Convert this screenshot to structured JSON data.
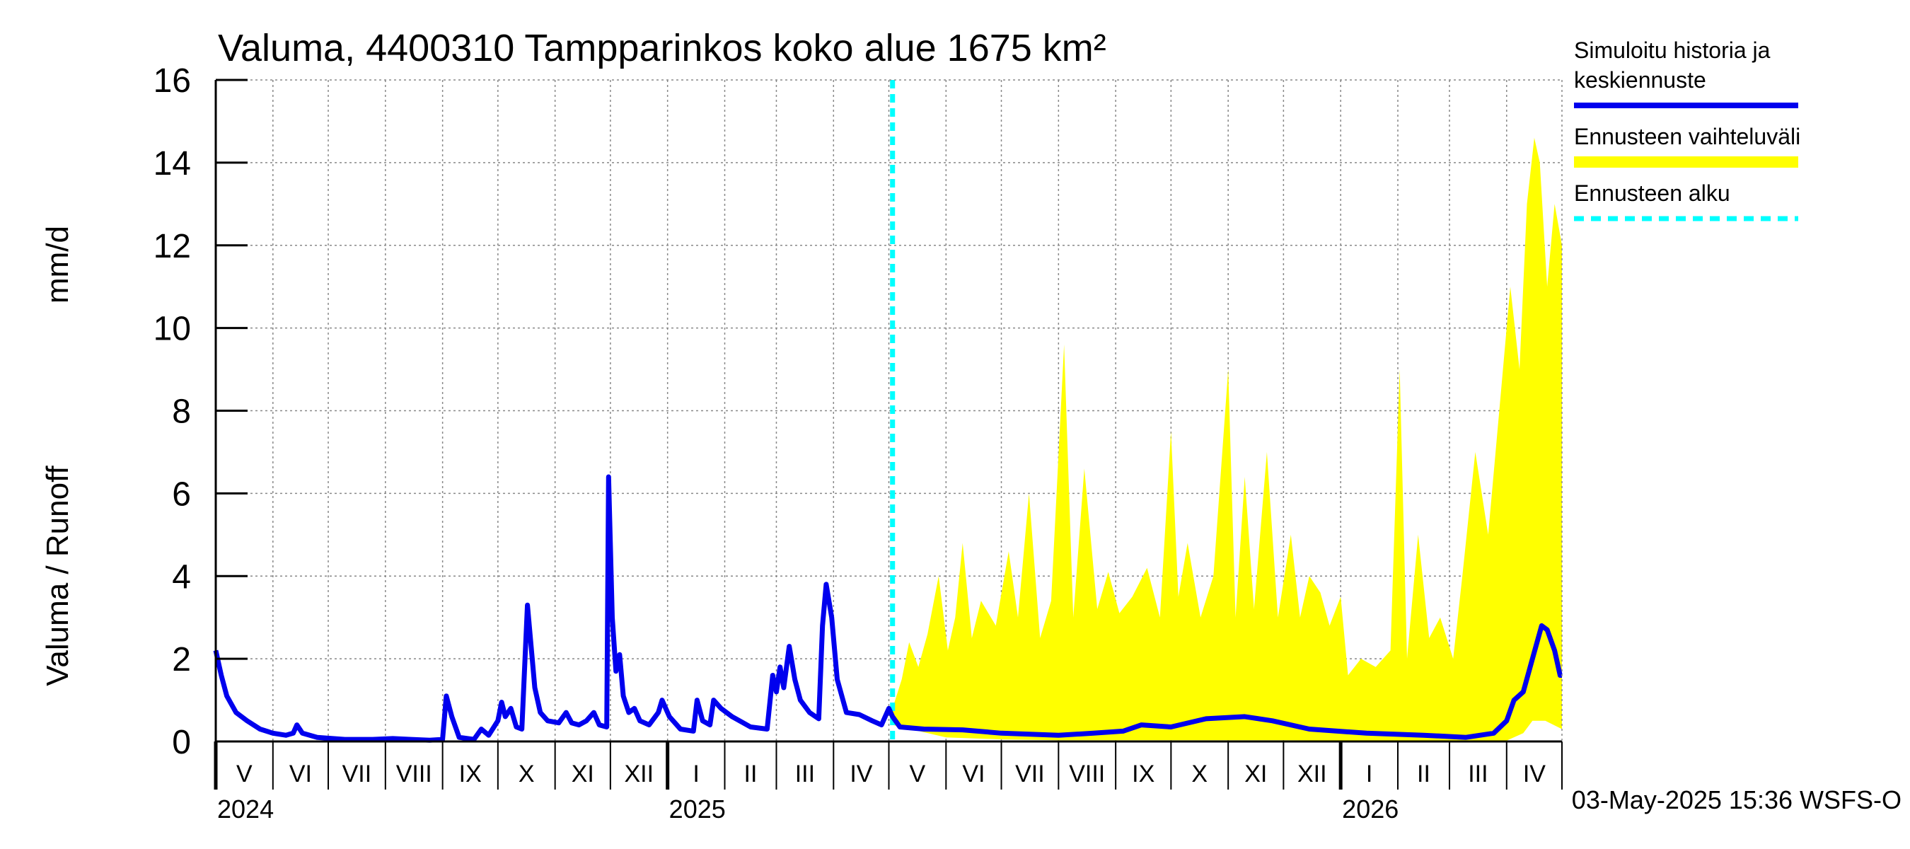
{
  "chart_data": {
    "type": "area",
    "title": "Valuma, 4400310 Tampparinkos koko alue 1675 km²",
    "ylabel_fi": "Valuma / Runoff",
    "ylabel_unit": "mm/d",
    "ylim": [
      0,
      16
    ],
    "yticks": [
      "0",
      "2",
      "4",
      "6",
      "8",
      "10",
      "12",
      "14",
      "16"
    ],
    "grid": true,
    "legend_position": "right",
    "x_start": "2024-05-01",
    "x_end": "2026-05-01",
    "months": [
      "V",
      "VI",
      "VII",
      "VIII",
      "IX",
      "X",
      "XI",
      "XII",
      "I",
      "II",
      "III",
      "IV",
      "V",
      "VI",
      "VII",
      "VIII",
      "IX",
      "X",
      "XI",
      "XII",
      "I",
      "II",
      "III",
      "IV"
    ],
    "years": [
      {
        "label": "2024",
        "date": "2024-05-01"
      },
      {
        "label": "2025",
        "date": "2025-01-01"
      },
      {
        "label": "2026",
        "date": "2026-01-01"
      }
    ],
    "forecast_start": "2025-05-03",
    "colors": {
      "history": "#0000ee",
      "range": "#ffff00",
      "forecast_start": "#00ffff"
    },
    "legend": [
      {
        "label_lines": [
          "Simuloitu historia ja",
          "keskiennuste"
        ],
        "style": "line",
        "color": "#0000ee"
      },
      {
        "label_lines": [
          "Ennusteen vaihteluväli"
        ],
        "style": "band",
        "color": "#ffff00"
      },
      {
        "label_lines": [
          "Ennusteen alku"
        ],
        "style": "dashed",
        "color": "#00ffff"
      }
    ],
    "footer": "03-May-2025 15:36 WSFS-O",
    "series": [
      {
        "name": "Simuloitu historia ja keskiennuste",
        "points": [
          [
            "2024-05-01",
            2.2
          ],
          [
            "2024-05-04",
            1.6
          ],
          [
            "2024-05-07",
            1.1
          ],
          [
            "2024-05-12",
            0.7
          ],
          [
            "2024-05-18",
            0.5
          ],
          [
            "2024-05-25",
            0.3
          ],
          [
            "2024-06-01",
            0.2
          ],
          [
            "2024-06-08",
            0.15
          ],
          [
            "2024-06-12",
            0.2
          ],
          [
            "2024-06-14",
            0.4
          ],
          [
            "2024-06-17",
            0.2
          ],
          [
            "2024-06-25",
            0.1
          ],
          [
            "2024-07-10",
            0.05
          ],
          [
            "2024-07-25",
            0.05
          ],
          [
            "2024-08-05",
            0.07
          ],
          [
            "2024-08-15",
            0.05
          ],
          [
            "2024-08-25",
            0.03
          ],
          [
            "2024-09-01",
            0.05
          ],
          [
            "2024-09-03",
            1.1
          ],
          [
            "2024-09-06",
            0.6
          ],
          [
            "2024-09-10",
            0.1
          ],
          [
            "2024-09-18",
            0.05
          ],
          [
            "2024-09-22",
            0.3
          ],
          [
            "2024-09-26",
            0.15
          ],
          [
            "2024-10-01",
            0.5
          ],
          [
            "2024-10-03",
            0.95
          ],
          [
            "2024-10-05",
            0.6
          ],
          [
            "2024-10-08",
            0.8
          ],
          [
            "2024-10-11",
            0.35
          ],
          [
            "2024-10-14",
            0.3
          ],
          [
            "2024-10-17",
            3.3
          ],
          [
            "2024-10-19",
            2.3
          ],
          [
            "2024-10-21",
            1.3
          ],
          [
            "2024-10-24",
            0.7
          ],
          [
            "2024-10-28",
            0.5
          ],
          [
            "2024-11-03",
            0.45
          ],
          [
            "2024-11-07",
            0.7
          ],
          [
            "2024-11-10",
            0.45
          ],
          [
            "2024-11-14",
            0.4
          ],
          [
            "2024-11-18",
            0.5
          ],
          [
            "2024-11-22",
            0.7
          ],
          [
            "2024-11-25",
            0.4
          ],
          [
            "2024-11-29",
            0.35
          ],
          [
            "2024-11-30",
            6.4
          ],
          [
            "2024-12-02",
            3.0
          ],
          [
            "2024-12-04",
            1.7
          ],
          [
            "2024-12-06",
            2.1
          ],
          [
            "2024-12-08",
            1.1
          ],
          [
            "2024-12-11",
            0.7
          ],
          [
            "2024-12-14",
            0.8
          ],
          [
            "2024-12-17",
            0.5
          ],
          [
            "2024-12-22",
            0.4
          ],
          [
            "2024-12-27",
            0.7
          ],
          [
            "2024-12-29",
            1.0
          ],
          [
            "2025-01-02",
            0.6
          ],
          [
            "2025-01-08",
            0.3
          ],
          [
            "2025-01-15",
            0.25
          ],
          [
            "2025-01-17",
            1.0
          ],
          [
            "2025-01-20",
            0.5
          ],
          [
            "2025-01-24",
            0.4
          ],
          [
            "2025-01-26",
            1.0
          ],
          [
            "2025-01-30",
            0.8
          ],
          [
            "2025-02-05",
            0.6
          ],
          [
            "2025-02-15",
            0.35
          ],
          [
            "2025-02-24",
            0.3
          ],
          [
            "2025-02-27",
            1.6
          ],
          [
            "2025-03-01",
            1.2
          ],
          [
            "2025-03-03",
            1.8
          ],
          [
            "2025-03-05",
            1.3
          ],
          [
            "2025-03-08",
            2.3
          ],
          [
            "2025-03-11",
            1.5
          ],
          [
            "2025-03-14",
            1.0
          ],
          [
            "2025-03-19",
            0.7
          ],
          [
            "2025-03-24",
            0.55
          ],
          [
            "2025-03-26",
            2.8
          ],
          [
            "2025-03-28",
            3.8
          ],
          [
            "2025-03-31",
            3.0
          ],
          [
            "2025-04-03",
            1.5
          ],
          [
            "2025-04-08",
            0.7
          ],
          [
            "2025-04-15",
            0.65
          ],
          [
            "2025-04-22",
            0.5
          ],
          [
            "2025-04-27",
            0.4
          ],
          [
            "2025-05-01",
            0.8
          ],
          [
            "2025-05-03",
            0.6
          ],
          [
            "2025-05-07",
            0.35
          ],
          [
            "2025-05-20",
            0.3
          ],
          [
            "2025-06-10",
            0.28
          ],
          [
            "2025-07-01",
            0.2
          ],
          [
            "2025-08-01",
            0.15
          ],
          [
            "2025-08-20",
            0.2
          ],
          [
            "2025-09-05",
            0.25
          ],
          [
            "2025-09-15",
            0.4
          ],
          [
            "2025-10-01",
            0.35
          ],
          [
            "2025-10-20",
            0.55
          ],
          [
            "2025-11-10",
            0.6
          ],
          [
            "2025-11-25",
            0.5
          ],
          [
            "2025-12-15",
            0.3
          ],
          [
            "2026-01-15",
            0.2
          ],
          [
            "2026-02-15",
            0.15
          ],
          [
            "2026-03-10",
            0.1
          ],
          [
            "2026-03-25",
            0.2
          ],
          [
            "2026-04-01",
            0.5
          ],
          [
            "2026-04-05",
            1.0
          ],
          [
            "2026-04-10",
            1.2
          ],
          [
            "2026-04-15",
            2.0
          ],
          [
            "2026-04-20",
            2.8
          ],
          [
            "2026-04-23",
            2.7
          ],
          [
            "2026-04-27",
            2.2
          ],
          [
            "2026-04-30",
            1.6
          ],
          [
            "2026-05-01",
            1.6
          ]
        ]
      },
      {
        "name": "Ennusteen vaihteluväli",
        "upper": [
          [
            "2025-05-03",
            0.8
          ],
          [
            "2025-05-08",
            1.5
          ],
          [
            "2025-05-12",
            2.4
          ],
          [
            "2025-05-17",
            1.8
          ],
          [
            "2025-05-22",
            2.6
          ],
          [
            "2025-05-28",
            4.0
          ],
          [
            "2025-06-02",
            2.2
          ],
          [
            "2025-06-06",
            3.0
          ],
          [
            "2025-06-10",
            4.8
          ],
          [
            "2025-06-15",
            2.5
          ],
          [
            "2025-06-20",
            3.4
          ],
          [
            "2025-06-28",
            2.8
          ],
          [
            "2025-07-05",
            4.6
          ],
          [
            "2025-07-10",
            3.0
          ],
          [
            "2025-07-16",
            6.0
          ],
          [
            "2025-07-22",
            2.5
          ],
          [
            "2025-07-28",
            3.4
          ],
          [
            "2025-08-04",
            9.6
          ],
          [
            "2025-08-09",
            3.0
          ],
          [
            "2025-08-15",
            6.6
          ],
          [
            "2025-08-22",
            3.2
          ],
          [
            "2025-08-28",
            4.1
          ],
          [
            "2025-09-03",
            3.1
          ],
          [
            "2025-09-10",
            3.5
          ],
          [
            "2025-09-18",
            4.2
          ],
          [
            "2025-09-25",
            3.0
          ],
          [
            "2025-10-01",
            7.5
          ],
          [
            "2025-10-05",
            3.5
          ],
          [
            "2025-10-10",
            4.8
          ],
          [
            "2025-10-17",
            3.0
          ],
          [
            "2025-10-24",
            4.0
          ],
          [
            "2025-11-01",
            9.0
          ],
          [
            "2025-11-05",
            3.0
          ],
          [
            "2025-11-10",
            6.4
          ],
          [
            "2025-11-15",
            3.2
          ],
          [
            "2025-11-22",
            7.0
          ],
          [
            "2025-11-28",
            3.0
          ],
          [
            "2025-12-05",
            5.0
          ],
          [
            "2025-12-10",
            3.0
          ],
          [
            "2025-12-15",
            4.0
          ],
          [
            "2025-12-21",
            3.6
          ],
          [
            "2025-12-26",
            2.8
          ],
          [
            "2026-01-01",
            3.5
          ],
          [
            "2026-01-05",
            1.6
          ],
          [
            "2026-01-12",
            2.0
          ],
          [
            "2026-01-20",
            1.8
          ],
          [
            "2026-01-28",
            2.2
          ],
          [
            "2026-02-02",
            9.0
          ],
          [
            "2026-02-06",
            2.0
          ],
          [
            "2026-02-12",
            5.0
          ],
          [
            "2026-02-18",
            2.5
          ],
          [
            "2026-02-24",
            3.0
          ],
          [
            "2026-03-03",
            2.0
          ],
          [
            "2026-03-08",
            4.0
          ],
          [
            "2026-03-15",
            7.0
          ],
          [
            "2026-03-22",
            5.0
          ],
          [
            "2026-03-28",
            8.0
          ],
          [
            "2026-04-03",
            11.0
          ],
          [
            "2026-04-08",
            9.0
          ],
          [
            "2026-04-12",
            13.0
          ],
          [
            "2026-04-16",
            14.6
          ],
          [
            "2026-04-19",
            14.0
          ],
          [
            "2026-04-23",
            11.0
          ],
          [
            "2026-04-27",
            13.0
          ],
          [
            "2026-05-01",
            12.0
          ]
        ],
        "lower": [
          [
            "2025-05-03",
            0.4
          ],
          [
            "2025-06-01",
            0.1
          ],
          [
            "2025-07-01",
            0.05
          ],
          [
            "2025-08-01",
            0.03
          ],
          [
            "2025-09-01",
            0.03
          ],
          [
            "2025-10-01",
            0.03
          ],
          [
            "2025-11-01",
            0.03
          ],
          [
            "2025-12-01",
            0.03
          ],
          [
            "2026-01-01",
            0.02
          ],
          [
            "2026-02-01",
            0.02
          ],
          [
            "2026-03-01",
            0.02
          ],
          [
            "2026-04-01",
            0.02
          ],
          [
            "2026-04-10",
            0.2
          ],
          [
            "2026-04-15",
            0.5
          ],
          [
            "2026-04-22",
            0.5
          ],
          [
            "2026-05-01",
            0.3
          ]
        ]
      }
    ]
  }
}
